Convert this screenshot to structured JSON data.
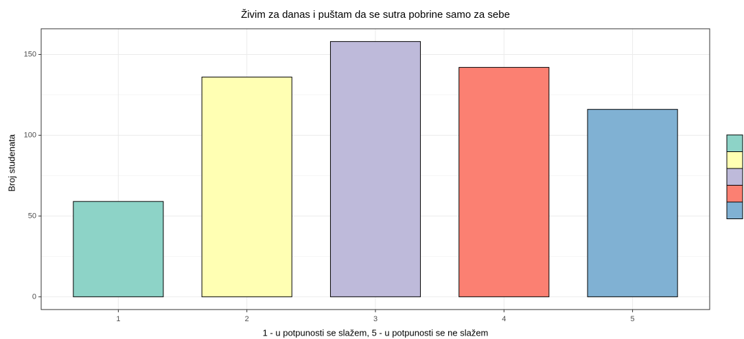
{
  "chart_data": {
    "type": "bar",
    "title": "Živim za danas i puštam da se sutra pobrine samo za sebe",
    "x_label": "1 - u potpunosti se slažem, 5 - u potpunosti se ne slažem",
    "y_label": "Broj studenata",
    "categories": [
      "1",
      "2",
      "3",
      "4",
      "5"
    ],
    "values": [
      59,
      136,
      158,
      142,
      116
    ],
    "colors": [
      "#8dd3c7",
      "#ffffb3",
      "#bebada",
      "#fb8072",
      "#80b1d3"
    ],
    "ylim": [
      -7.9,
      165.9
    ],
    "yticks": [
      0,
      50,
      100,
      150
    ],
    "minor_yticks": [
      25,
      75,
      125
    ],
    "grid": true,
    "legend": "right"
  }
}
